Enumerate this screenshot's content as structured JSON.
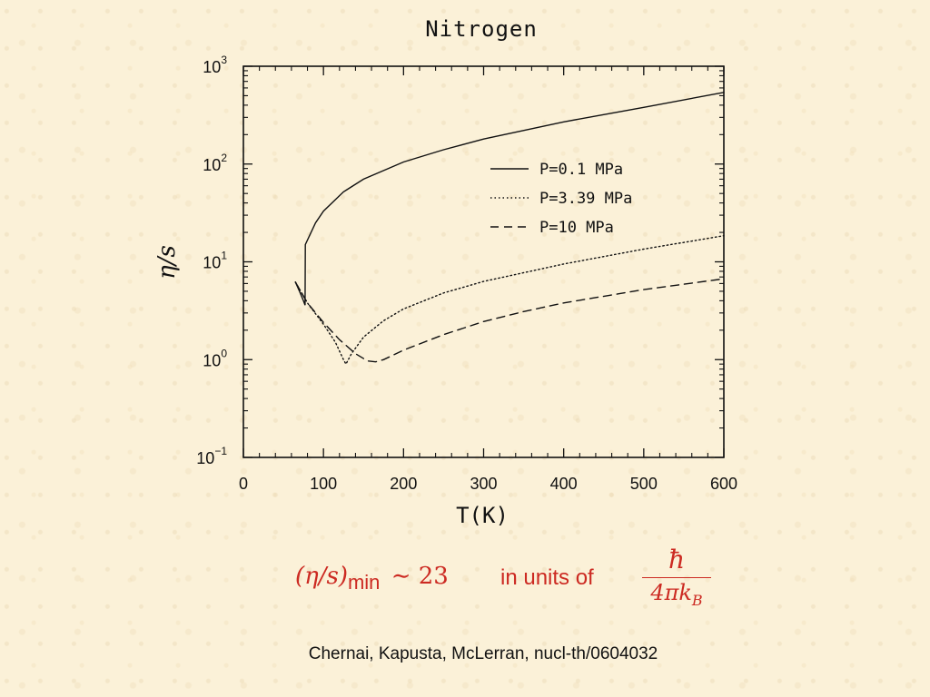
{
  "slide": {
    "formula": {
      "lhs": "(η/s)",
      "subscript": "min",
      "rhs": "∼ 23",
      "words": "in units of",
      "numerator": "ħ",
      "denominator": "4πk",
      "denominator_sub": "B"
    },
    "footer": "Chernai, Kapusta, McLerran, nucl-th/0604032"
  },
  "chart_data": {
    "type": "line",
    "title": "Nitrogen",
    "xlabel": "T(K)",
    "ylabel": "η/s",
    "xlim": [
      0,
      600
    ],
    "ylim": [
      0.1,
      1000
    ],
    "yscale": "log",
    "xticks": [
      0,
      100,
      200,
      300,
      400,
      500,
      600
    ],
    "xtick_labels": [
      "0",
      "100",
      "200",
      "300",
      "400",
      "500",
      "600"
    ],
    "yticks": [
      0.1,
      1,
      10,
      100,
      1000
    ],
    "ytick_labels": [
      {
        "base": "10",
        "exp": "−1"
      },
      {
        "base": "10",
        "exp": "0"
      },
      {
        "base": "10",
        "exp": "1"
      },
      {
        "base": "10",
        "exp": "2"
      },
      {
        "base": "10",
        "exp": "3"
      }
    ],
    "legend_position": "upper-right",
    "series": [
      {
        "name": "P=0.1 MPa",
        "style": "solid",
        "points": [
          [
            65,
            6.2
          ],
          [
            70,
            5.0
          ],
          [
            75,
            4.0
          ],
          [
            77,
            3.6
          ],
          [
            77.3,
            15.0
          ],
          [
            90,
            25
          ],
          [
            100,
            33
          ],
          [
            125,
            52
          ],
          [
            150,
            70
          ],
          [
            200,
            105
          ],
          [
            250,
            140
          ],
          [
            300,
            180
          ],
          [
            400,
            270
          ],
          [
            500,
            380
          ],
          [
            600,
            540
          ]
        ]
      },
      {
        "name": "P=3.39 MPa",
        "style": "dotted",
        "points": [
          [
            65,
            6.2
          ],
          [
            80,
            3.8
          ],
          [
            100,
            2.3
          ],
          [
            115,
            1.5
          ],
          [
            125,
            1.0
          ],
          [
            128,
            0.9
          ],
          [
            135,
            1.15
          ],
          [
            150,
            1.7
          ],
          [
            175,
            2.5
          ],
          [
            200,
            3.3
          ],
          [
            250,
            4.8
          ],
          [
            300,
            6.3
          ],
          [
            400,
            9.5
          ],
          [
            500,
            13.5
          ],
          [
            600,
            18.5
          ]
        ]
      },
      {
        "name": "P=10 MPa",
        "style": "dashed",
        "points": [
          [
            65,
            6.2
          ],
          [
            80,
            3.8
          ],
          [
            100,
            2.4
          ],
          [
            120,
            1.6
          ],
          [
            140,
            1.15
          ],
          [
            155,
            0.97
          ],
          [
            165,
            0.95
          ],
          [
            175,
            1.0
          ],
          [
            200,
            1.25
          ],
          [
            250,
            1.8
          ],
          [
            300,
            2.45
          ],
          [
            350,
            3.1
          ],
          [
            400,
            3.8
          ],
          [
            500,
            5.2
          ],
          [
            600,
            6.7
          ]
        ]
      }
    ]
  }
}
